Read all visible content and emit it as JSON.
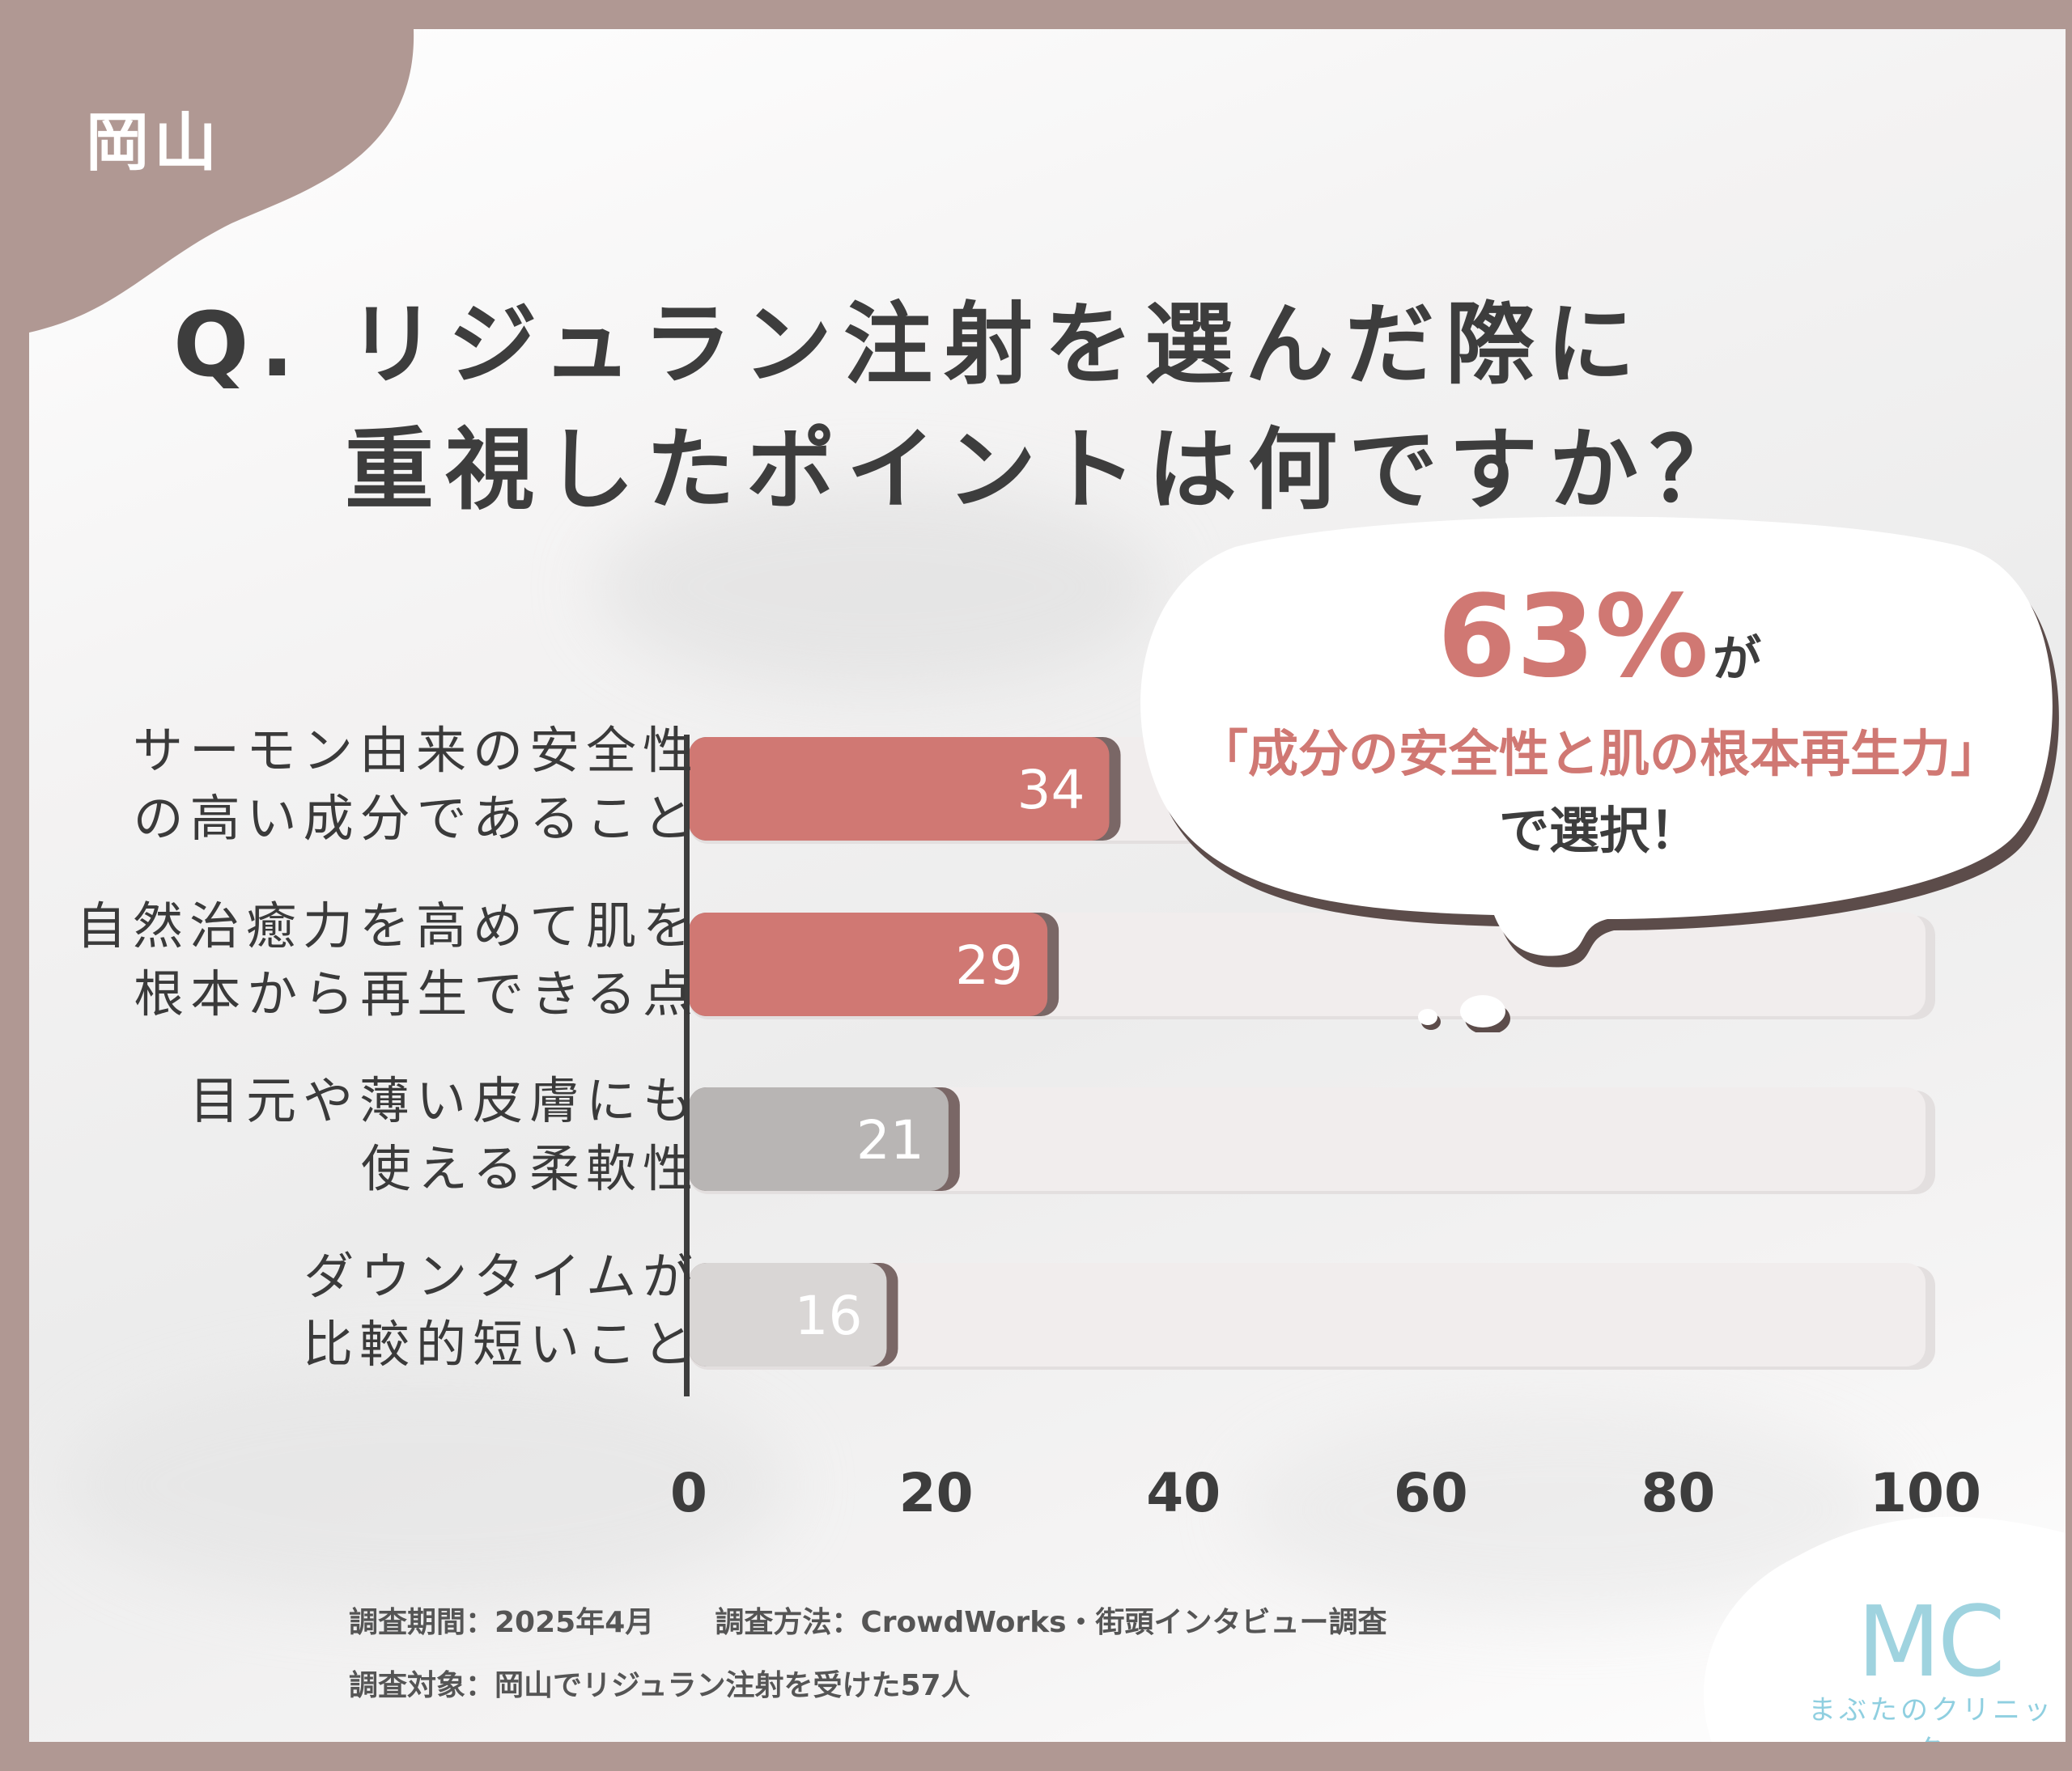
{
  "region": "岡山",
  "title": {
    "line1": "Q. リジュラン注射を選んだ際に",
    "line2": "重視したポイントは何ですか？"
  },
  "callout": {
    "percent": "63%",
    "suffix": "が",
    "quote": "「成分の安全性と肌の根本再生力」",
    "ending": "で選択！"
  },
  "chart_data": {
    "type": "bar",
    "orientation": "horizontal",
    "categories": [
      [
        "サーモン由来の安全性",
        "の高い成分であること"
      ],
      [
        "自然治癒力を高めて肌を",
        "根本から再生できる点"
      ],
      [
        "目元や薄い皮膚にも",
        "使える柔軟性"
      ],
      [
        "ダウンタイムが",
        "比較的短いこと"
      ]
    ],
    "values": [
      34,
      29,
      21,
      16
    ],
    "value_labels": [
      "34",
      "29",
      "21",
      "16"
    ],
    "xlim": [
      0,
      100
    ],
    "xticks": [
      "0",
      "20",
      "40",
      "60",
      "80",
      "100"
    ],
    "bar_colors": [
      "#d07873",
      "#d07873",
      "#b8b5b4",
      "#d9d6d5"
    ],
    "track_color": "#f1eded",
    "grid": false
  },
  "footer": {
    "period": "調査期間：2025年4月",
    "method": "調査方法：CrowdWorks・街頭インタビュー調査",
    "target": "調査対象：岡山でリジュラン注射を受けた57人"
  },
  "brand": {
    "logo_text": "MC",
    "name": "まぶたのクリニック"
  },
  "colors": {
    "frame": "#b09893",
    "accent": "#d07873",
    "text": "#3d3d3d",
    "logo": "#8fcfe0"
  }
}
